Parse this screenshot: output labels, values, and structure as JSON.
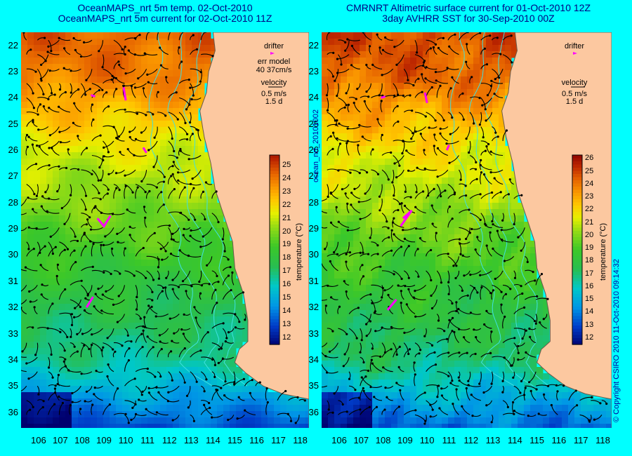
{
  "left": {
    "title": "OceanMAPS_nrt 5m temp. 02-Oct-2010\nOceanMAPS_nrt 5m current for 02-Oct-2010 11Z",
    "legend": {
      "drifter": "drifter",
      "err_line1": "err model",
      "err_line2": "40 37cm/s",
      "velocity": "velocity",
      "scale": "0.5 m/s",
      "days": "1.5 d"
    }
  },
  "right": {
    "title": "CMRNRT Altimetric surface current for 01-Oct-2010 12Z\n3day AVHRR SST for 30-Sep-2010 00Z",
    "legend": {
      "drifter": "drifter",
      "velocity": "velocity",
      "scale": "0.5 m/s",
      "days": "1.5 d"
    }
  },
  "colorbar": {
    "label": "temperature (°C)",
    "ticks": [
      "25",
      "24",
      "23",
      "22",
      "21",
      "20",
      "19",
      "18",
      "17",
      "16",
      "15",
      "14",
      "13",
      "12"
    ],
    "ticks_right": [
      "26",
      "25",
      "24",
      "23",
      "22",
      "21",
      "20",
      "19",
      "18",
      "17",
      "16",
      "15",
      "14",
      "13",
      "12"
    ],
    "range_left": [
      11.5,
      25.8
    ],
    "range_right": [
      11.5,
      26.3
    ]
  },
  "y_ticks": [
    "22",
    "23",
    "24",
    "25",
    "26",
    "27",
    "28",
    "29",
    "30",
    "31",
    "32",
    "33",
    "34",
    "35",
    "36"
  ],
  "x_ticks": [
    "106",
    "107",
    "108",
    "109",
    "110",
    "111",
    "112",
    "113",
    "114",
    "115",
    "116",
    "117",
    "118"
  ],
  "middle_label": "ocean_nrt_20101002",
  "copyright": "© Copyright CSIRO 2010   11-Oct-2010 09:14:32",
  "colors": {
    "background": "#00ffff",
    "land": "#fcc8a0",
    "title": "#000080",
    "drifter": "#ff00ff"
  }
}
